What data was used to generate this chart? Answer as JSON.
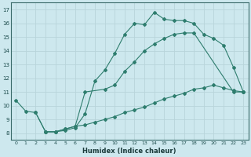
{
  "xlabel": "Humidex (Indice chaleur)",
  "bg_color": "#cde8ee",
  "grid_color": "#b8d4da",
  "line_color": "#2e7d6e",
  "xlim": [
    -0.5,
    23.5
  ],
  "ylim": [
    7.5,
    17.5
  ],
  "xticks": [
    0,
    1,
    2,
    3,
    4,
    5,
    6,
    7,
    8,
    9,
    10,
    11,
    12,
    13,
    14,
    15,
    16,
    17,
    18,
    19,
    20,
    21,
    22,
    23
  ],
  "yticks": [
    8,
    9,
    10,
    11,
    12,
    13,
    14,
    15,
    16,
    17
  ],
  "line1": {
    "x": [
      0,
      1,
      2,
      3,
      4,
      5,
      6,
      7,
      8,
      9,
      10,
      11,
      12,
      13,
      14,
      15,
      16,
      17,
      18,
      19,
      20,
      21,
      22,
      23
    ],
    "y": [
      10.4,
      9.6,
      9.5,
      8.1,
      8.1,
      8.2,
      8.4,
      9.4,
      11.8,
      12.6,
      13.8,
      15.2,
      16.0,
      15.9,
      16.8,
      16.3,
      16.2,
      16.2,
      16.0,
      15.2,
      14.9,
      14.4,
      12.8,
      11.0
    ]
  },
  "line2": {
    "x": [
      2,
      3,
      4,
      5,
      6,
      7,
      9,
      10,
      11,
      12,
      13,
      14,
      15,
      16,
      17,
      18,
      22,
      23
    ],
    "y": [
      9.5,
      8.1,
      8.1,
      8.3,
      8.5,
      11.0,
      11.2,
      11.5,
      12.5,
      13.2,
      14.0,
      14.5,
      14.9,
      15.2,
      15.3,
      15.3,
      11.0,
      11.0
    ]
  },
  "line3": {
    "x": [
      3,
      4,
      5,
      6,
      7,
      8,
      9,
      10,
      11,
      12,
      13,
      14,
      15,
      16,
      17,
      18,
      19,
      20,
      21,
      22,
      23
    ],
    "y": [
      8.1,
      8.1,
      8.3,
      8.5,
      8.6,
      8.8,
      9.0,
      9.2,
      9.5,
      9.7,
      9.9,
      10.2,
      10.5,
      10.7,
      10.9,
      11.2,
      11.3,
      11.5,
      11.3,
      11.1,
      11.0
    ]
  }
}
